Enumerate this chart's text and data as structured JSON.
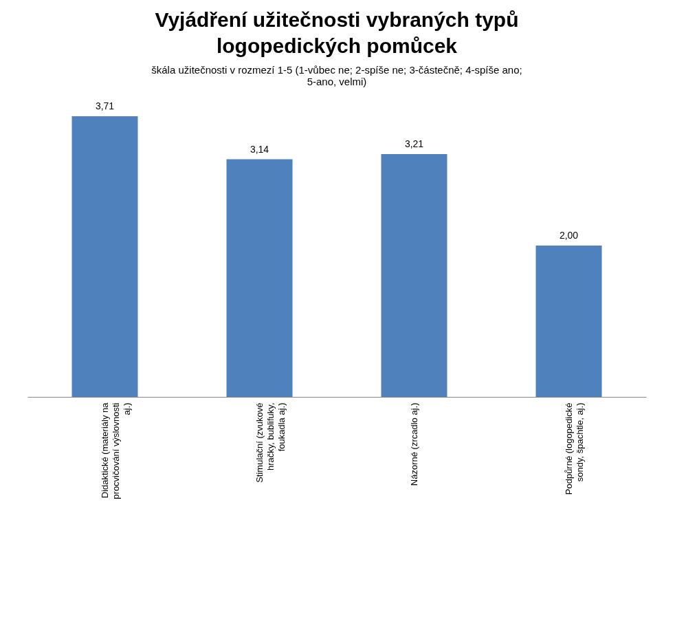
{
  "chart_data": {
    "type": "bar",
    "title": "Vyjádření užitečnosti vybraných typů logopedických pomůcek",
    "subtitle": "škála užitečnosti v rozmezí 1-5 (1-vůbec ne; 2-spíše ne; 3-částečně; 4-spíše ano; 5-ano, velmi)",
    "categories": [
      "Didaktické (materiály na procvičování výslovnosti aj.)",
      "Stimulační (zvukové hračky, bublifuky, foukadla aj.)",
      "Názorné (zrcadlo aj.)",
      "Podpůrné (logopedické sondy, špachtle, aj.)"
    ],
    "values": [
      3.71,
      3.14,
      3.21,
      2.0
    ],
    "value_labels": [
      "3,71",
      "3,14",
      "3,21",
      "2,00"
    ],
    "color": "#4f81bd",
    "tick_labels": "x",
    "grid": false
  }
}
